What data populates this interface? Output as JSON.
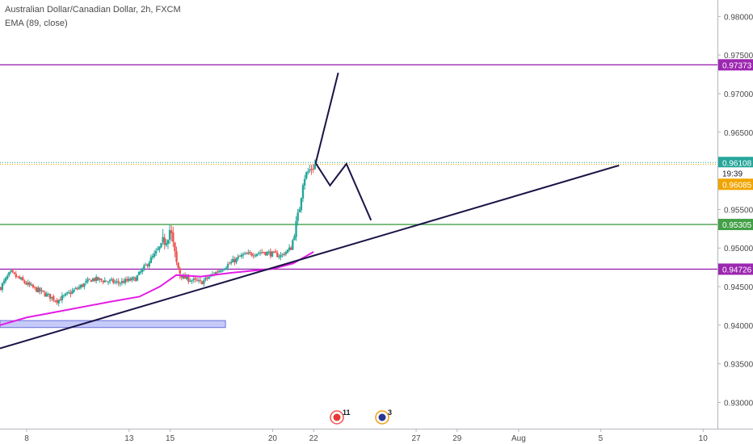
{
  "legend": {
    "symbol_line": "Australian Dollar/Canadian Dollar, 2h, FXCM",
    "indicator_line": "EMA (89, close)"
  },
  "price_labels": {
    "level_top": "0.97373",
    "level_upper": "0.96108",
    "countdown": "19:39",
    "last_price": "0.96085",
    "level_middle": "0.95305",
    "level_lower": "0.94726"
  },
  "event_badges": {
    "canada": "11",
    "australia": "3"
  },
  "colors": {
    "up_candle": "#26a69a",
    "down_candle": "#ef5350",
    "ema": "#e31ce6",
    "level_purple": "#9c27b0",
    "level_green": "#43a047",
    "price_line_green": "#26a69a",
    "price_line_orange": "#f0a500",
    "trendline": "#1a1446",
    "zone_fill": "#b3b8f5",
    "zone_border": "#6a6fd8"
  },
  "chart_data": {
    "type": "candlestick",
    "title": "Australian Dollar/Canadian Dollar, 2h, FXCM",
    "indicator": "EMA (89, close)",
    "ylim": [
      0.928,
      0.9815
    ],
    "y_ticks": [
      "0.93000",
      "0.93500",
      "0.94000",
      "0.94500",
      "0.95000",
      "0.95500",
      "0.96000",
      "0.96500",
      "0.97000",
      "0.97500",
      "0.98000"
    ],
    "x_ticks": [
      "8",
      "13",
      "15",
      "20",
      "22",
      "27",
      "29",
      "Aug",
      "5",
      "10"
    ],
    "x_tick_days": [
      8,
      13,
      15,
      20,
      22,
      27,
      29,
      32,
      36,
      41
    ],
    "x_range_days": [
      6.7,
      41.7
    ],
    "last_candle_day": 22.1,
    "horizontal_levels": [
      {
        "value": 0.97373,
        "color": "purple"
      },
      {
        "value": 0.96108,
        "color": "green-dotted"
      },
      {
        "value": 0.96085,
        "color": "orange-dotted"
      },
      {
        "value": 0.95305,
        "color": "green"
      },
      {
        "value": 0.94726,
        "color": "purple"
      }
    ],
    "support_zone": {
      "from_day": 6.7,
      "to_day": 17.7,
      "low": 0.9397,
      "high": 0.9406
    },
    "trendline": {
      "from": [
        6.7,
        0.937
      ],
      "to": [
        36.9,
        0.9607
      ]
    },
    "projection_paths": [
      [
        [
          22.1,
          0.961
        ],
        [
          23.2,
          0.9727
        ]
      ],
      [
        [
          22.1,
          0.961
        ],
        [
          22.8,
          0.9581
        ],
        [
          23.6,
          0.9609
        ],
        [
          24.8,
          0.9536
        ]
      ]
    ],
    "anchors": [
      [
        6.7,
        0.9448
      ],
      [
        7.2,
        0.9468
      ],
      [
        8.2,
        0.945
      ],
      [
        9.5,
        0.9432
      ],
      [
        10.5,
        0.9448
      ],
      [
        11.2,
        0.946
      ],
      [
        12.5,
        0.9455
      ],
      [
        13.3,
        0.946
      ],
      [
        14.2,
        0.949
      ],
      [
        14.8,
        0.9512
      ],
      [
        15.0,
        0.9525
      ],
      [
        15.3,
        0.948
      ],
      [
        15.6,
        0.9462
      ],
      [
        16.5,
        0.9455
      ],
      [
        17.2,
        0.9468
      ],
      [
        18.5,
        0.949
      ],
      [
        19.5,
        0.9495
      ],
      [
        20.4,
        0.949
      ],
      [
        20.9,
        0.95
      ],
      [
        21.3,
        0.955
      ],
      [
        21.5,
        0.959
      ],
      [
        21.7,
        0.9598
      ],
      [
        22.1,
        0.96085
      ]
    ],
    "ema": [
      [
        6.7,
        0.94
      ],
      [
        8.0,
        0.941
      ],
      [
        10.0,
        0.942
      ],
      [
        12.0,
        0.943
      ],
      [
        13.5,
        0.9437
      ],
      [
        14.5,
        0.945
      ],
      [
        15.3,
        0.9465
      ],
      [
        16.5,
        0.9463
      ],
      [
        18.0,
        0.9468
      ],
      [
        20.0,
        0.9473
      ],
      [
        21.0,
        0.948
      ],
      [
        22.0,
        0.9495
      ]
    ]
  }
}
